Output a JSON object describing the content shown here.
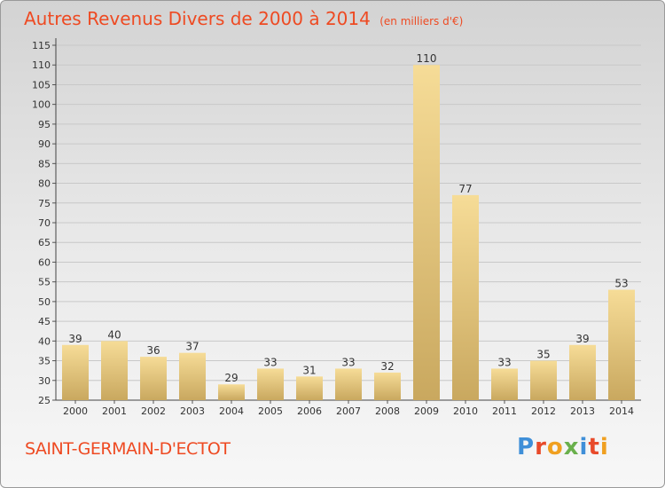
{
  "chart_data": {
    "type": "bar",
    "title": "Autres Revenus Divers de 2000 à 2014",
    "subtitle": "(en milliers d'€)",
    "categories": [
      "2000",
      "2001",
      "2002",
      "2003",
      "2004",
      "2005",
      "2006",
      "2007",
      "2008",
      "2009",
      "2010",
      "2011",
      "2012",
      "2013",
      "2014"
    ],
    "values": [
      39,
      40,
      36,
      37,
      29,
      33,
      31,
      33,
      32,
      110,
      77,
      33,
      35,
      39,
      53
    ],
    "ylim": [
      25,
      115
    ],
    "yticks": [
      25,
      30,
      35,
      40,
      45,
      50,
      55,
      60,
      65,
      70,
      75,
      80,
      85,
      90,
      95,
      100,
      105,
      110,
      115
    ],
    "grid": "horizontal",
    "bar_color": "#e8c77a"
  },
  "footer": {
    "place": "SAINT-GERMAIN-D'ECTOT",
    "logo": [
      "P",
      "r",
      "o",
      "x",
      "i",
      "t",
      "i"
    ],
    "logo_colors": [
      "#3f8fd8",
      "#e84a2a",
      "#f0a020",
      "#6ab04c",
      "#3f8fd8",
      "#e84a2a",
      "#f0a020"
    ]
  }
}
